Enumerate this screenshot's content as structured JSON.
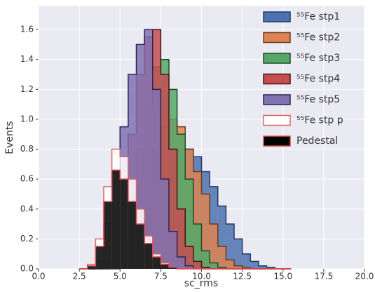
{
  "chart_data": {
    "type": "histogram",
    "xlabel": "sc_rms",
    "ylabel": "Events",
    "bins": [
      2.5,
      3,
      3.5,
      4,
      4.5,
      5,
      5.5,
      6,
      6.5,
      7,
      7.5,
      8,
      8.5,
      9,
      9.5,
      10,
      10.5,
      11,
      11.5,
      12,
      12.5,
      13,
      13.5,
      14,
      14.5,
      15,
      15.5
    ],
    "series": [
      {
        "name": "⁵⁵Fe stp1",
        "color": "#4c72b0",
        "edge": "#1f3a66",
        "values": [
          0,
          0,
          0,
          0,
          0,
          0.01,
          0.05,
          0.15,
          0.3,
          0.45,
          0.6,
          0.75,
          0.8,
          0.8,
          0.75,
          0.65,
          0.55,
          0.42,
          0.3,
          0.2,
          0.1,
          0.05,
          0.02,
          0.01,
          0,
          0
        ]
      },
      {
        "name": "⁵⁵Fe stp2",
        "color": "#dd8452",
        "edge": "#6e3a1a",
        "values": [
          0,
          0,
          0,
          0,
          0.01,
          0.05,
          0.2,
          0.4,
          0.6,
          0.8,
          0.95,
          1.0,
          0.95,
          0.8,
          0.65,
          0.5,
          0.3,
          0.15,
          0.06,
          0.02,
          0.01,
          0,
          0,
          0,
          0,
          0
        ]
      },
      {
        "name": "⁵⁵Fe stp3",
        "color": "#55a868",
        "edge": "#1e4a28",
        "values": [
          0,
          0,
          0,
          0.01,
          0.05,
          0.2,
          0.5,
          0.8,
          1.1,
          1.35,
          1.4,
          1.2,
          0.9,
          0.6,
          0.3,
          0.12,
          0.04,
          0.01,
          0,
          0,
          0,
          0,
          0,
          0,
          0,
          0
        ]
      },
      {
        "name": "⁵⁵Fe stp4",
        "color": "#c44e52",
        "edge": "#4a1214",
        "values": [
          0,
          0,
          0.01,
          0.05,
          0.2,
          0.5,
          0.9,
          1.3,
          1.55,
          1.6,
          1.3,
          0.8,
          0.4,
          0.15,
          0.05,
          0.01,
          0,
          0,
          0,
          0,
          0,
          0,
          0,
          0,
          0,
          0
        ]
      },
      {
        "name": "⁵⁵Fe stp5",
        "color": "#8172b3",
        "edge": "#2e2452",
        "values": [
          0,
          0.01,
          0.05,
          0.3,
          0.65,
          0.95,
          1.3,
          1.5,
          1.6,
          1.2,
          0.6,
          0.25,
          0.08,
          0.02,
          0,
          0,
          0,
          0,
          0,
          0,
          0,
          0,
          0,
          0,
          0,
          0
        ]
      },
      {
        "name": "⁵⁵Fe stp p",
        "color": "#ffffff",
        "edge": "#d9666a",
        "values": [
          0,
          0.03,
          0.2,
          0.55,
          0.8,
          0.75,
          0.6,
          0.4,
          0.22,
          0.1,
          0.04,
          0.01,
          0,
          0,
          0,
          0,
          0,
          0,
          0,
          0,
          0,
          0,
          0,
          0,
          0,
          0
        ]
      },
      {
        "name": "Pedestal",
        "color": "#000000",
        "edge": "#e0484e",
        "values": [
          0,
          0.02,
          0.15,
          0.45,
          0.66,
          0.6,
          0.45,
          0.3,
          0.17,
          0.08,
          0.03,
          0.01,
          0,
          0,
          0,
          0,
          0,
          0,
          0,
          0,
          0,
          0,
          0,
          0,
          0,
          0
        ]
      }
    ],
    "xlim": [
      0,
      20
    ],
    "ylim": [
      0,
      1.76
    ],
    "xticks": [
      {
        "value": 0,
        "label": "0.0"
      },
      {
        "value": 2.5,
        "label": "2.5"
      },
      {
        "value": 5,
        "label": "5.0"
      },
      {
        "value": 7.5,
        "label": "7.5"
      },
      {
        "value": 10,
        "label": "10.0"
      },
      {
        "value": 12.5,
        "label": "12.5"
      },
      {
        "value": 15,
        "label": "15.0"
      },
      {
        "value": 17.5,
        "label": "17.5"
      },
      {
        "value": 20,
        "label": "20.0"
      }
    ],
    "yticks": [
      {
        "value": 0,
        "label": "0.0"
      },
      {
        "value": 0.2,
        "label": "0.2"
      },
      {
        "value": 0.4,
        "label": "0.4"
      },
      {
        "value": 0.6,
        "label": "0.6"
      },
      {
        "value": 0.8,
        "label": "0.8"
      },
      {
        "value": 1,
        "label": "1.0"
      },
      {
        "value": 1.2,
        "label": "1.2"
      },
      {
        "value": 1.4,
        "label": "1.4"
      },
      {
        "value": 1.6,
        "label": "1.6"
      }
    ],
    "grid": true,
    "legend": "upper right"
  }
}
